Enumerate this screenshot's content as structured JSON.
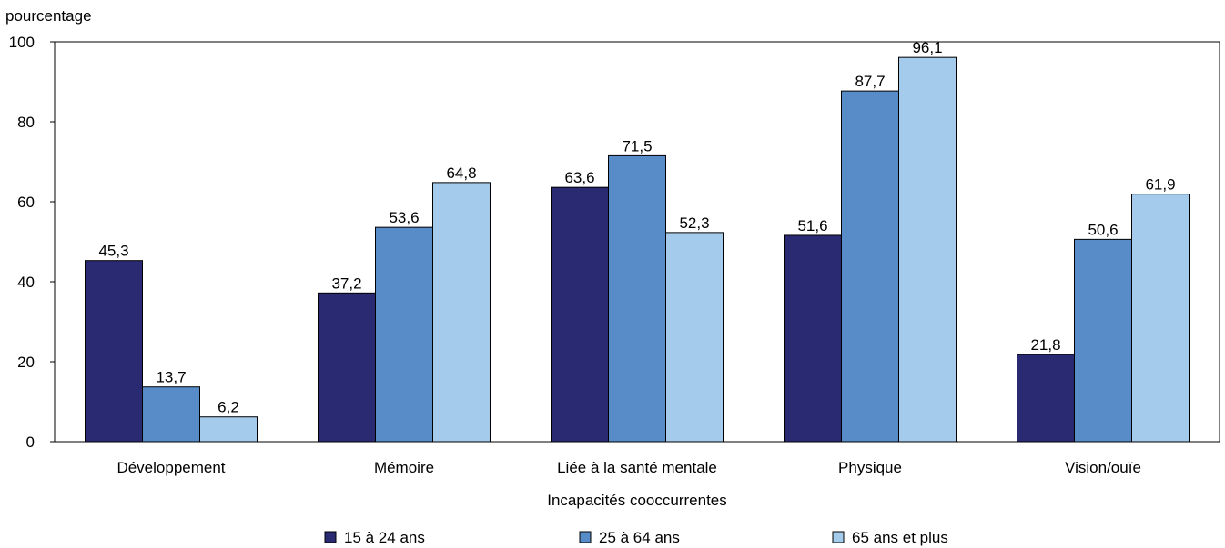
{
  "chart_data": {
    "type": "bar",
    "ylabel": "pourcentage",
    "xlabel": "Incapacités cooccurrentes",
    "ylim": [
      0,
      100
    ],
    "yticks": [
      0,
      20,
      40,
      60,
      80,
      100
    ],
    "grid": false,
    "legend_position": "bottom",
    "categories": [
      "Développement",
      "Mémoire",
      "Liée à la santé mentale",
      "Physique",
      "Vision/ouïe"
    ],
    "series": [
      {
        "name": "15 à 24 ans",
        "color": "#2a2a72",
        "values": [
          45.3,
          37.2,
          63.6,
          51.6,
          21.8
        ],
        "labels": [
          "45,3",
          "37,2",
          "63,6",
          "51,6",
          "21,8"
        ]
      },
      {
        "name": "25 à 64 ans",
        "color": "#578cc8",
        "values": [
          13.7,
          53.6,
          71.5,
          87.7,
          50.6
        ],
        "labels": [
          "13,7",
          "53,6",
          "71,5",
          "87,7",
          "50,6"
        ]
      },
      {
        "name": "65 ans et plus",
        "color": "#a4cbec",
        "values": [
          6.2,
          64.8,
          52.3,
          96.1,
          61.9
        ],
        "labels": [
          "6,2",
          "64,8",
          "52,3",
          "96,1",
          "61,9"
        ]
      }
    ]
  }
}
